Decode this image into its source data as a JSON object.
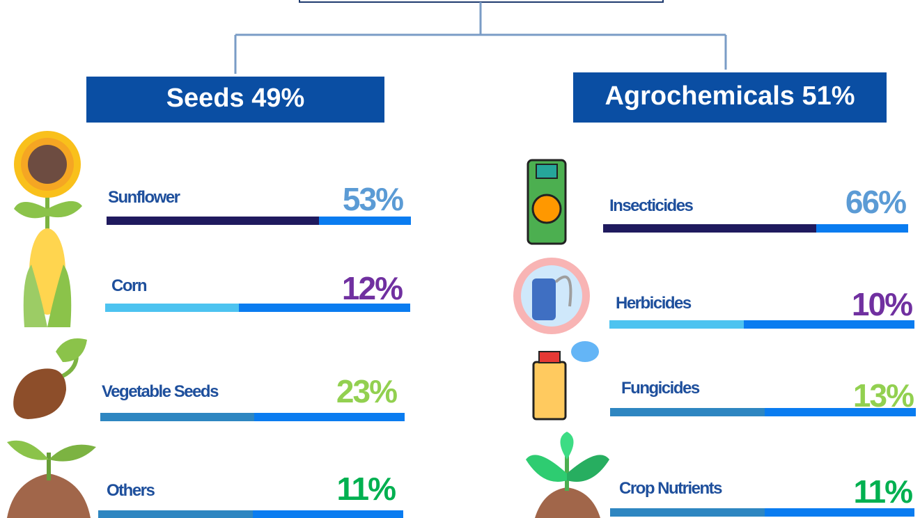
{
  "left": {
    "title": "Seeds 49%",
    "items": [
      {
        "label": "Sunflower",
        "value": "53%"
      },
      {
        "label": "Corn",
        "value": "12%"
      },
      {
        "label": "Vegetable Seeds",
        "value": "23%"
      },
      {
        "label": "Others",
        "value": "11%"
      }
    ]
  },
  "right": {
    "title": "Agrochemicals 51%",
    "items": [
      {
        "label": "Insecticides",
        "value": "66%"
      },
      {
        "label": "Herbicides",
        "value": "10%"
      },
      {
        "label": "Fungicides",
        "value": "13%"
      },
      {
        "label": "Crop Nutrients",
        "value": "11%"
      }
    ]
  }
}
